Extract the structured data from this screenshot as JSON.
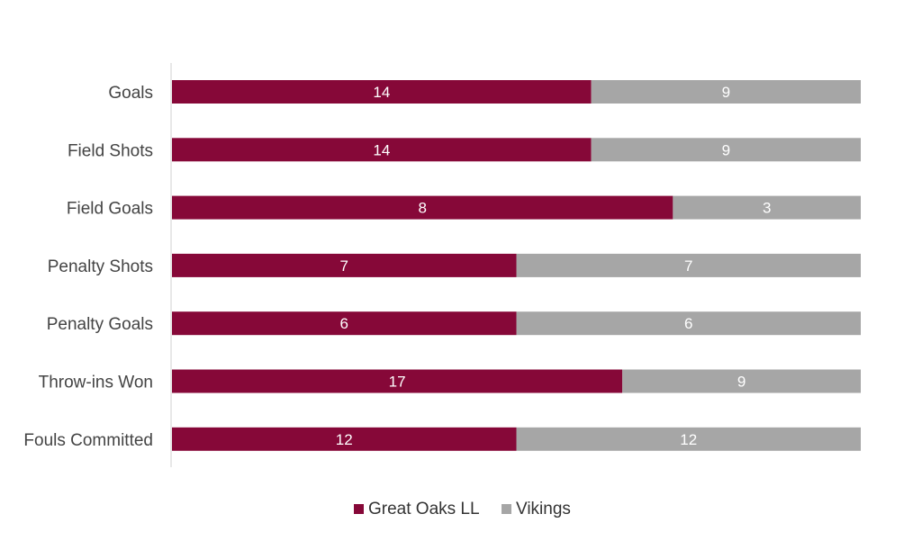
{
  "chart_data": {
    "type": "bar",
    "orientation": "horizontal",
    "stacked": "percent",
    "title": "",
    "xlabel": "",
    "ylabel": "",
    "categories": [
      "Goals",
      "Field Shots",
      "Field Goals",
      "Penalty Shots",
      "Penalty Goals",
      "Throw-ins Won",
      "Fouls Committed"
    ],
    "series": [
      {
        "name": "Great Oaks LL",
        "color": "#860838",
        "values": [
          14,
          14,
          8,
          7,
          6,
          17,
          12
        ]
      },
      {
        "name": "Vikings",
        "color": "#a6a6a6",
        "values": [
          9,
          9,
          3,
          7,
          6,
          9,
          12
        ]
      }
    ],
    "legend": "bottom",
    "grid": false
  }
}
